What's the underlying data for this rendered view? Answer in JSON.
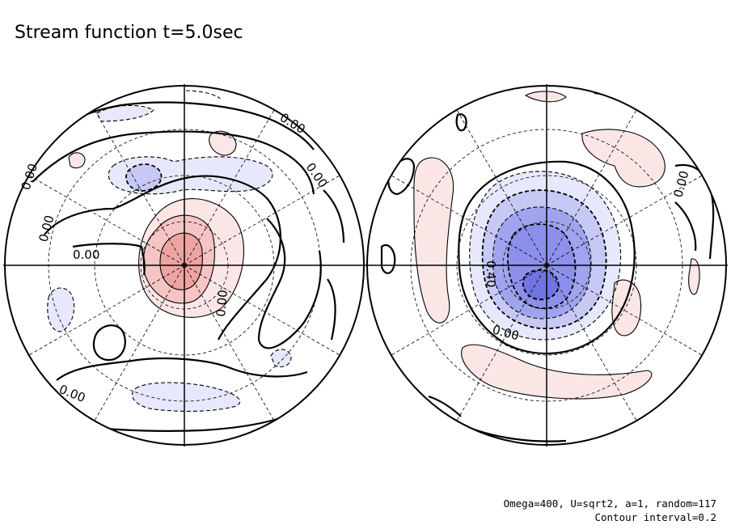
{
  "title": "Stream function t=5.0sec",
  "footer": {
    "params": "Omega=400, U=sqrt2, a=1, random=117",
    "interval": "Contour interval=0.2"
  },
  "colors": {
    "positive_light": "#fbe6e6",
    "positive_mid": "#f5c4c4",
    "positive_strong": "#eea3a3",
    "negative_light": "#e7e8fb",
    "negative_mid": "#c7c9f5",
    "negative_strong": "#a0a4ee",
    "negative_deep": "#7d82e6"
  },
  "contour_labels": {
    "left": [
      "0.00",
      "0.00",
      "0.00",
      "0.00",
      "0.00",
      "0.00",
      "0.00"
    ],
    "right": [
      "0.00",
      "0.40",
      "0.00"
    ]
  }
}
